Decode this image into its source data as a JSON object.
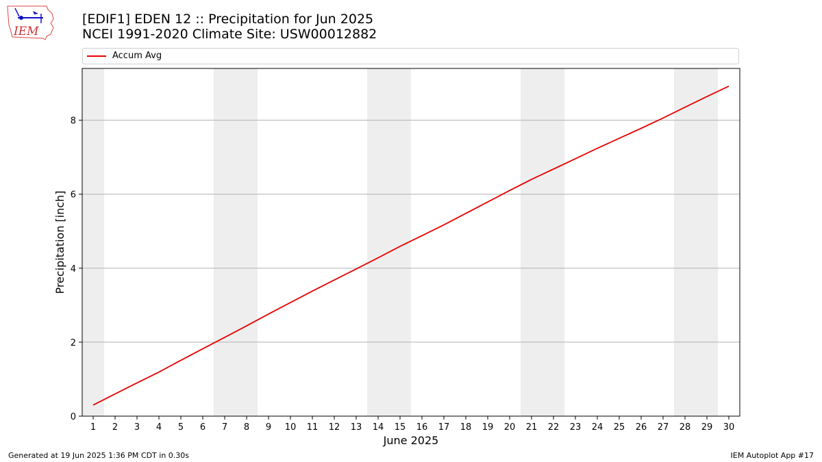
{
  "header": {
    "title_line1": "[EDIF1] EDEN 12 :: Precipitation for Jun 2025",
    "title_line2": "NCEI 1991-2020 Climate Site: USW00012882"
  },
  "logo": {
    "text": "IEM",
    "icon": "iem-iowa-logo"
  },
  "footer": {
    "generated": "Generated at 19 Jun 2025 1:36 PM CDT in 0.30s",
    "app": "IEM Autoplot App #17"
  },
  "colors": {
    "line": "#e60000",
    "weekend_shade": "#eeeeee",
    "grid": "#b0b0b0"
  },
  "chart_data": {
    "type": "line",
    "title": "[EDIF1] EDEN 12 :: Precipitation for Jun 2025",
    "subtitle": "NCEI 1991-2020 Climate Site: USW00012882",
    "xlabel": "June 2025",
    "ylabel": "Precipitation [inch]",
    "xlim": [
      0.5,
      30.5
    ],
    "ylim": [
      0,
      9.4
    ],
    "x_ticks": [
      1,
      2,
      3,
      4,
      5,
      6,
      7,
      8,
      9,
      10,
      11,
      12,
      13,
      14,
      15,
      16,
      17,
      18,
      19,
      20,
      21,
      22,
      23,
      24,
      25,
      26,
      27,
      28,
      29,
      30
    ],
    "y_ticks": [
      0,
      2,
      4,
      6,
      8
    ],
    "grid": "horizontal",
    "legend_position": "top",
    "shaded_days": [
      1,
      7,
      8,
      14,
      15,
      21,
      22,
      28,
      29
    ],
    "series": [
      {
        "name": "Accum Avg",
        "x": [
          1,
          2,
          3,
          4,
          5,
          6,
          7,
          8,
          9,
          10,
          11,
          12,
          13,
          14,
          15,
          16,
          17,
          18,
          19,
          20,
          21,
          22,
          23,
          24,
          25,
          26,
          27,
          28,
          29,
          30
        ],
        "values": [
          0.3,
          0.6,
          0.9,
          1.19,
          1.51,
          1.82,
          2.13,
          2.44,
          2.76,
          3.07,
          3.38,
          3.68,
          3.98,
          4.28,
          4.59,
          4.88,
          5.17,
          5.48,
          5.79,
          6.1,
          6.4,
          6.68,
          6.96,
          7.24,
          7.51,
          7.78,
          8.06,
          8.35,
          8.64,
          8.92
        ]
      }
    ]
  }
}
